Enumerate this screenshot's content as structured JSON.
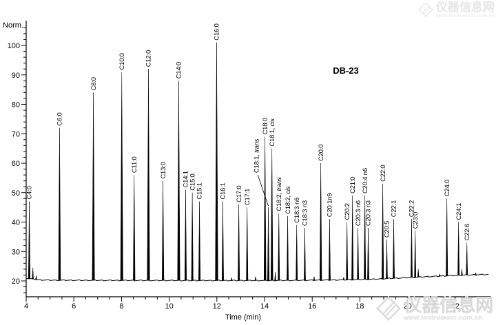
{
  "page": {
    "background": "#ffffff",
    "ink_color": "#000000"
  },
  "chart_data": {
    "type": "line",
    "title": "DB-23",
    "xlabel": "Time (min)",
    "ylabel": "Norm.",
    "xlim": [
      4,
      23.5
    ],
    "x_ticks_labeled": [
      4,
      6,
      8,
      10,
      12,
      14,
      16,
      18,
      20,
      22
    ],
    "x_minor_step": 0.5,
    "ylim": [
      15,
      108
    ],
    "y_ticks_labeled": [
      20,
      30,
      40,
      50,
      60,
      70,
      80,
      90,
      100
    ],
    "y_minor_step": 2,
    "grid": false,
    "legend": "none",
    "baseline_drift": [
      [
        4,
        20.9
      ],
      [
        4.6,
        20.35
      ],
      [
        5.2,
        20.25
      ],
      [
        8,
        20.2
      ],
      [
        12,
        20.15
      ],
      [
        14,
        20.15
      ],
      [
        16,
        20.25
      ],
      [
        17.5,
        20.4
      ],
      [
        18.6,
        20.6
      ],
      [
        19.4,
        20.9
      ],
      [
        20.1,
        21.15
      ],
      [
        20.8,
        21.45
      ],
      [
        21.6,
        21.75
      ],
      [
        22.4,
        22.0
      ],
      [
        23.0,
        22.15
      ],
      [
        23.45,
        22.2
      ]
    ],
    "noise_amplitude": 0.16,
    "peaks": [
      {
        "label": "C4:0",
        "time": 4.13,
        "height": 47
      },
      {
        "label": "C6:0",
        "time": 5.4,
        "height": 72
      },
      {
        "label": "C8:0",
        "time": 6.82,
        "height": 84
      },
      {
        "label": "C10:0",
        "time": 8.01,
        "height": 91
      },
      {
        "label": "C11:0",
        "time": 8.53,
        "height": 56
      },
      {
        "label": "C12:0",
        "time": 9.13,
        "height": 92
      },
      {
        "label": "C13:0",
        "time": 9.74,
        "height": 54
      },
      {
        "label": "C14:0",
        "time": 10.4,
        "height": 88
      },
      {
        "label": "C14:1",
        "time": 10.69,
        "height": 51
      },
      {
        "label": "C15:0",
        "time": 10.97,
        "height": 50
      },
      {
        "label": "C15:1",
        "time": 11.27,
        "height": 47
      },
      {
        "label": "C16:0",
        "time": 11.99,
        "height": 101
      },
      {
        "label": "C16:1",
        "time": 12.25,
        "height": 47
      },
      {
        "label": "C17:0",
        "time": 12.92,
        "height": 46
      },
      {
        "label": "C17:1",
        "time": 13.27,
        "height": 45
      },
      {
        "label": "C18:0",
        "time": 14.02,
        "height": 69
      },
      {
        "label": "C18:1, trans",
        "italic_suffix": "trans",
        "time": 14.16,
        "height": 45,
        "label_dx": -17,
        "label_v": 56,
        "leader": true
      },
      {
        "label": "C18:1, cis",
        "italic_suffix": "cis",
        "time": 14.31,
        "height": 65
      },
      {
        "label": "C18:2, trans",
        "italic_suffix": "trans",
        "time": 14.6,
        "height": 43
      },
      {
        "label": "C18:2, cis",
        "italic_suffix": "cis",
        "time": 14.97,
        "height": 42
      },
      {
        "label": "C18:3 n6",
        "time": 15.35,
        "height": 39
      },
      {
        "label": "C18:3 n3",
        "time": 15.69,
        "height": 38
      },
      {
        "label": "C20:0",
        "time": 16.36,
        "height": 60
      },
      {
        "label": "C20:1n9",
        "time": 16.73,
        "height": 41
      },
      {
        "label": "C20:2",
        "time": 17.46,
        "height": 40
      },
      {
        "label": "C21:0",
        "time": 17.69,
        "height": 49
      },
      {
        "label": "C20:3 n6",
        "time": 17.92,
        "height": 38
      },
      {
        "label": "C20:4 n6",
        "time": 18.21,
        "height": 49
      },
      {
        "label": "C20:3 n3",
        "time": 18.35,
        "height": 38
      },
      {
        "label": "C22:0",
        "time": 18.96,
        "height": 53
      },
      {
        "label": "C20:5",
        "time": 19.13,
        "height": 34
      },
      {
        "label": "C22:1",
        "time": 19.42,
        "height": 41
      },
      {
        "label": "C22:2",
        "time": 20.17,
        "height": 41
      },
      {
        "label": "C23:0",
        "time": 20.32,
        "height": 37
      },
      {
        "label": "C24:0",
        "time": 21.65,
        "height": 48
      },
      {
        "label": "C24:1",
        "time": 22.14,
        "height": 40
      },
      {
        "label": "C22:6",
        "time": 22.49,
        "height": 33
      }
    ],
    "unlabeled_peaks": [
      [
        4.28,
        24.5
      ],
      [
        4.42,
        21.8
      ],
      [
        12.62,
        21.2
      ],
      [
        13.62,
        21.5
      ],
      [
        14.45,
        23.0
      ],
      [
        16.08,
        21.5
      ],
      [
        17.32,
        21.3
      ],
      [
        20.45,
        24.0
      ],
      [
        21.35,
        22.4
      ],
      [
        22.28,
        24.0
      ],
      [
        22.86,
        22.8
      ]
    ]
  },
  "watermarks": {
    "brand": "仪器信息网",
    "url": "www.instrument.com.cn"
  }
}
